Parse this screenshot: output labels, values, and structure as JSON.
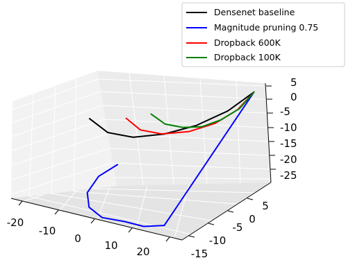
{
  "chart_data": {
    "type": "line",
    "projection": "3d",
    "grid": true,
    "legend_position": "top-right",
    "axes": {
      "x": {
        "range": [
          -20,
          25
        ],
        "ticks": [
          -20,
          -10,
          0,
          10,
          20
        ]
      },
      "y": {
        "range": [
          -15,
          8
        ],
        "ticks": [
          -15,
          -10,
          -5,
          0,
          5
        ]
      },
      "z": {
        "range": [
          -27,
          6
        ],
        "ticks": [
          5,
          0,
          -5,
          -10,
          -15,
          -20,
          -25
        ]
      }
    },
    "series": [
      {
        "name": "Densenet baseline",
        "color": "#000000",
        "x": [
          0.0,
          2.5,
          6.0,
          10.5,
          15.5,
          20.5,
          24.5
        ],
        "y": [
          -13.0,
          -11.0,
          -8.0,
          -4.5,
          -1.0,
          2.5,
          5.5
        ],
        "z": [
          4.0,
          -1.5,
          -4.5,
          -5.0,
          -3.5,
          0.0,
          5.0
        ]
      },
      {
        "name": "Magnitude pruning 0.75",
        "color": "#0000ff",
        "x": [
          -5.0,
          -7.0,
          -6.0,
          -2.0,
          4.0,
          10.0,
          15.5,
          21.0,
          24.5
        ],
        "y": [
          -2.0,
          -5.0,
          -9.0,
          -12.5,
          -15.0,
          -15.0,
          -15.5,
          -15.5,
          5.5
        ],
        "z": [
          -22.0,
          -24.0,
          -25.8,
          -26.5,
          -26.0,
          -25.5,
          -25.0,
          -23.0,
          5.0
        ]
      },
      {
        "name": "Dropback 600K",
        "color": "#ff0000",
        "x": [
          5.5,
          7.5,
          10.5,
          14.5,
          18.5,
          22.0,
          24.5
        ],
        "y": [
          -9.0,
          -7.5,
          -5.0,
          -2.0,
          1.0,
          3.5,
          5.5
        ],
        "z": [
          2.5,
          -2.0,
          -4.5,
          -5.0,
          -3.5,
          0.0,
          5.0
        ]
      },
      {
        "name": "Dropback 100K",
        "color": "#008000",
        "x": [
          9.0,
          11.0,
          13.5,
          16.5,
          19.5,
          22.5,
          24.5
        ],
        "y": [
          -6.0,
          -4.5,
          -2.5,
          -0.5,
          1.5,
          3.5,
          5.5
        ],
        "z": [
          2.5,
          -1.5,
          -3.5,
          -4.0,
          -2.5,
          0.5,
          5.0
        ]
      }
    ]
  }
}
